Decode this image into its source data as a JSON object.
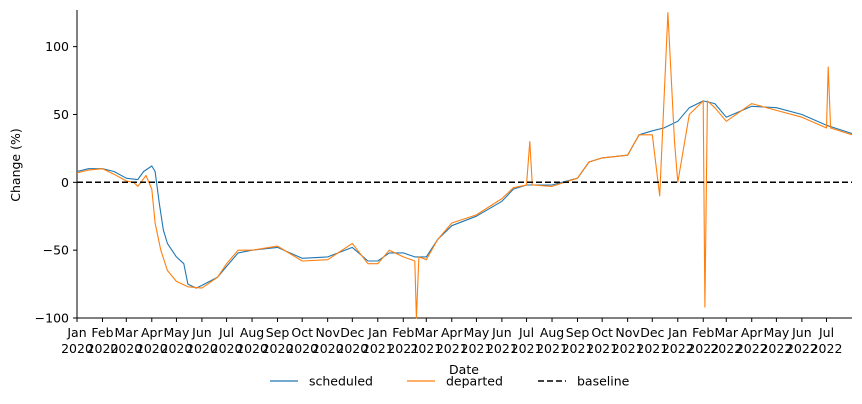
{
  "chart_data": {
    "type": "line",
    "title": "",
    "xlabel": "Date",
    "ylabel": "Change (%)",
    "ylim": [
      -100,
      127
    ],
    "yticks": [
      -100,
      -50,
      0,
      50,
      100
    ],
    "ytick_labels": [
      "−100",
      "−50",
      "0",
      "50",
      "100"
    ],
    "xlim": [
      "2020-01-01",
      "2022-08-01"
    ],
    "x_ticks": [
      {
        "date": "2020-01-01",
        "month": "Jan",
        "year": "2020"
      },
      {
        "date": "2020-02-01",
        "month": "Feb",
        "year": "2020"
      },
      {
        "date": "2020-03-01",
        "month": "Mar",
        "year": "2020"
      },
      {
        "date": "2020-04-01",
        "month": "Apr",
        "year": "2020"
      },
      {
        "date": "2020-05-01",
        "month": "May",
        "year": "2020"
      },
      {
        "date": "2020-06-01",
        "month": "Jun",
        "year": "2020"
      },
      {
        "date": "2020-07-01",
        "month": "Jul",
        "year": "2020"
      },
      {
        "date": "2020-08-01",
        "month": "Aug",
        "year": "2020"
      },
      {
        "date": "2020-09-01",
        "month": "Sep",
        "year": "2020"
      },
      {
        "date": "2020-10-01",
        "month": "Oct",
        "year": "2020"
      },
      {
        "date": "2020-11-01",
        "month": "Nov",
        "year": "2020"
      },
      {
        "date": "2020-12-01",
        "month": "Dec",
        "year": "2020"
      },
      {
        "date": "2021-01-01",
        "month": "Jan",
        "year": "2021"
      },
      {
        "date": "2021-02-01",
        "month": "Feb",
        "year": "2021"
      },
      {
        "date": "2021-03-01",
        "month": "Mar",
        "year": "2021"
      },
      {
        "date": "2021-04-01",
        "month": "Apr",
        "year": "2021"
      },
      {
        "date": "2021-05-01",
        "month": "May",
        "year": "2021"
      },
      {
        "date": "2021-06-01",
        "month": "Jun",
        "year": "2021"
      },
      {
        "date": "2021-07-01",
        "month": "Jul",
        "year": "2021"
      },
      {
        "date": "2021-08-01",
        "month": "Aug",
        "year": "2021"
      },
      {
        "date": "2021-09-01",
        "month": "Sep",
        "year": "2021"
      },
      {
        "date": "2021-10-01",
        "month": "Oct",
        "year": "2021"
      },
      {
        "date": "2021-11-01",
        "month": "Nov",
        "year": "2021"
      },
      {
        "date": "2021-12-01",
        "month": "Dec",
        "year": "2021"
      },
      {
        "date": "2022-01-01",
        "month": "Jan",
        "year": "2022"
      },
      {
        "date": "2022-02-01",
        "month": "Feb",
        "year": "2022"
      },
      {
        "date": "2022-03-01",
        "month": "Mar",
        "year": "2022"
      },
      {
        "date": "2022-04-01",
        "month": "Apr",
        "year": "2022"
      },
      {
        "date": "2022-05-01",
        "month": "May",
        "year": "2022"
      },
      {
        "date": "2022-06-01",
        "month": "Jun",
        "year": "2022"
      },
      {
        "date": "2022-07-01",
        "month": "Jul",
        "year": "2022"
      }
    ],
    "series": [
      {
        "name": "scheduled",
        "color": "#1f77b4",
        "points": [
          [
            "2020-01-01",
            8
          ],
          [
            "2020-01-15",
            10
          ],
          [
            "2020-02-01",
            10
          ],
          [
            "2020-02-15",
            8
          ],
          [
            "2020-03-01",
            3
          ],
          [
            "2020-03-15",
            2
          ],
          [
            "2020-03-22",
            8
          ],
          [
            "2020-04-01",
            12
          ],
          [
            "2020-04-05",
            8
          ],
          [
            "2020-04-10",
            -15
          ],
          [
            "2020-04-15",
            -35
          ],
          [
            "2020-04-20",
            -45
          ],
          [
            "2020-05-01",
            -55
          ],
          [
            "2020-05-10",
            -60
          ],
          [
            "2020-05-15",
            -75
          ],
          [
            "2020-05-25",
            -78
          ],
          [
            "2020-06-01",
            -76
          ],
          [
            "2020-06-20",
            -70
          ],
          [
            "2020-07-01",
            -62
          ],
          [
            "2020-07-15",
            -52
          ],
          [
            "2020-08-01",
            -50
          ],
          [
            "2020-09-01",
            -48
          ],
          [
            "2020-10-01",
            -56
          ],
          [
            "2020-11-01",
            -55
          ],
          [
            "2020-12-01",
            -48
          ],
          [
            "2020-12-20",
            -58
          ],
          [
            "2021-01-01",
            -58
          ],
          [
            "2021-01-15",
            -52
          ],
          [
            "2021-02-01",
            -52
          ],
          [
            "2021-02-15",
            -55
          ],
          [
            "2021-03-01",
            -55
          ],
          [
            "2021-03-15",
            -42
          ],
          [
            "2021-04-01",
            -32
          ],
          [
            "2021-05-01",
            -25
          ],
          [
            "2021-06-01",
            -14
          ],
          [
            "2021-06-15",
            -5
          ],
          [
            "2021-07-01",
            -2
          ],
          [
            "2021-08-01",
            -2
          ],
          [
            "2021-09-01",
            3
          ],
          [
            "2021-09-15",
            15
          ],
          [
            "2021-10-01",
            18
          ],
          [
            "2021-11-01",
            20
          ],
          [
            "2021-11-15",
            35
          ],
          [
            "2021-12-01",
            38
          ],
          [
            "2021-12-15",
            40
          ],
          [
            "2022-01-01",
            45
          ],
          [
            "2022-01-15",
            55
          ],
          [
            "2022-02-01",
            60
          ],
          [
            "2022-02-15",
            58
          ],
          [
            "2022-03-01",
            48
          ],
          [
            "2022-04-01",
            56
          ],
          [
            "2022-05-01",
            55
          ],
          [
            "2022-06-01",
            50
          ],
          [
            "2022-07-01",
            42
          ],
          [
            "2022-08-01",
            36
          ]
        ]
      },
      {
        "name": "departed",
        "color": "#ff7f0e",
        "points": [
          [
            "2020-01-01",
            7
          ],
          [
            "2020-01-15",
            9
          ],
          [
            "2020-02-01",
            10
          ],
          [
            "2020-02-15",
            6
          ],
          [
            "2020-03-01",
            1
          ],
          [
            "2020-03-10",
            0
          ],
          [
            "2020-03-15",
            -3
          ],
          [
            "2020-03-25",
            5
          ],
          [
            "2020-04-01",
            -5
          ],
          [
            "2020-04-05",
            -30
          ],
          [
            "2020-04-12",
            -50
          ],
          [
            "2020-04-20",
            -65
          ],
          [
            "2020-05-01",
            -73
          ],
          [
            "2020-05-15",
            -77
          ],
          [
            "2020-06-01",
            -78
          ],
          [
            "2020-06-20",
            -70
          ],
          [
            "2020-07-01",
            -60
          ],
          [
            "2020-07-15",
            -50
          ],
          [
            "2020-08-01",
            -50
          ],
          [
            "2020-09-01",
            -47
          ],
          [
            "2020-10-01",
            -58
          ],
          [
            "2020-11-01",
            -57
          ],
          [
            "2020-12-01",
            -45
          ],
          [
            "2020-12-20",
            -60
          ],
          [
            "2021-01-01",
            -60
          ],
          [
            "2021-01-15",
            -50
          ],
          [
            "2021-02-01",
            -55
          ],
          [
            "2021-02-15",
            -58
          ],
          [
            "2021-02-17",
            -100
          ],
          [
            "2021-02-20",
            -55
          ],
          [
            "2021-03-01",
            -57
          ],
          [
            "2021-03-15",
            -42
          ],
          [
            "2021-04-01",
            -30
          ],
          [
            "2021-05-01",
            -24
          ],
          [
            "2021-06-01",
            -12
          ],
          [
            "2021-06-15",
            -4
          ],
          [
            "2021-07-01",
            -2
          ],
          [
            "2021-07-05",
            30
          ],
          [
            "2021-07-08",
            -2
          ],
          [
            "2021-08-01",
            -3
          ],
          [
            "2021-09-01",
            3
          ],
          [
            "2021-09-15",
            15
          ],
          [
            "2021-10-01",
            18
          ],
          [
            "2021-11-01",
            20
          ],
          [
            "2021-11-15",
            35
          ],
          [
            "2021-12-01",
            35
          ],
          [
            "2021-12-10",
            -10
          ],
          [
            "2021-12-20",
            125
          ],
          [
            "2021-12-28",
            30
          ],
          [
            "2022-01-01",
            0
          ],
          [
            "2022-01-15",
            50
          ],
          [
            "2022-02-01",
            60
          ],
          [
            "2022-02-03",
            -92
          ],
          [
            "2022-02-06",
            60
          ],
          [
            "2022-02-15",
            55
          ],
          [
            "2022-03-01",
            45
          ],
          [
            "2022-04-01",
            58
          ],
          [
            "2022-05-01",
            53
          ],
          [
            "2022-06-01",
            48
          ],
          [
            "2022-07-01",
            40
          ],
          [
            "2022-07-03",
            85
          ],
          [
            "2022-07-06",
            40
          ],
          [
            "2022-08-01",
            35
          ]
        ]
      },
      {
        "name": "baseline",
        "color": "#000000",
        "style": "dashed",
        "points": [
          [
            "2020-01-01",
            0
          ],
          [
            "2022-08-01",
            0
          ]
        ]
      }
    ],
    "legend": {
      "position": "bottom-center",
      "entries": [
        {
          "label": "scheduled",
          "color": "#1f77b4",
          "style": "solid"
        },
        {
          "label": "departed",
          "color": "#ff7f0e",
          "style": "solid"
        },
        {
          "label": "baseline",
          "color": "#000000",
          "style": "dashed"
        }
      ]
    },
    "grid": false
  }
}
